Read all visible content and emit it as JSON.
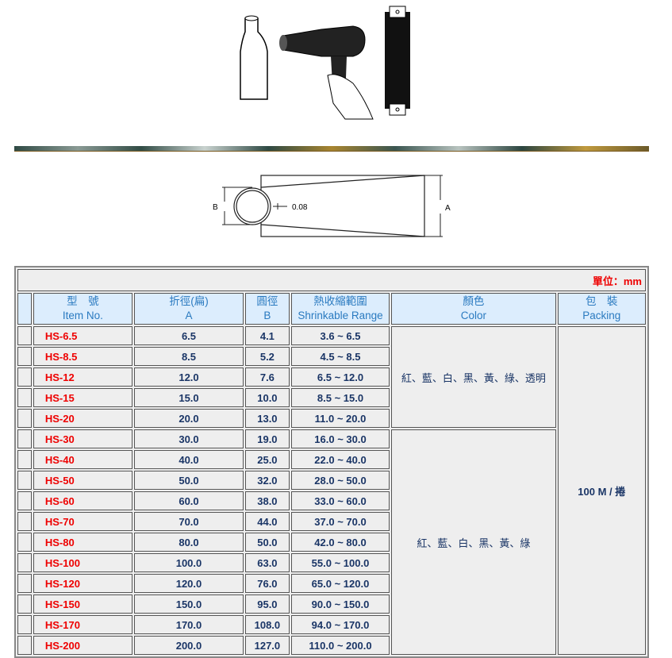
{
  "diagram": {
    "label_b": "B",
    "label_a": "A",
    "thickness": "0.08"
  },
  "table": {
    "unit": "單位：mm",
    "headers": [
      {
        "zh": "型　號",
        "en": "Item No."
      },
      {
        "zh": "折徑(扁)",
        "en": "A"
      },
      {
        "zh": "圓徑",
        "en": "B"
      },
      {
        "zh": "熱收縮範圍",
        "en": "Shrinkable Range"
      },
      {
        "zh": "顏色",
        "en": "Color"
      },
      {
        "zh": "包　裝",
        "en": "Packing"
      }
    ],
    "rows": [
      [
        "HS-6.5",
        "6.5",
        "4.1",
        "3.6 ~ 6.5"
      ],
      [
        "HS-8.5",
        "8.5",
        "5.2",
        "4.5 ~ 8.5"
      ],
      [
        "HS-12",
        "12.0",
        "7.6",
        "6.5 ~ 12.0"
      ],
      [
        "HS-15",
        "15.0",
        "10.0",
        "8.5 ~ 15.0"
      ],
      [
        "HS-20",
        "20.0",
        "13.0",
        "11.0 ~ 20.0"
      ],
      [
        "HS-30",
        "30.0",
        "19.0",
        "16.0 ~ 30.0"
      ],
      [
        "HS-40",
        "40.0",
        "25.0",
        "22.0 ~ 40.0"
      ],
      [
        "HS-50",
        "50.0",
        "32.0",
        "28.0 ~ 50.0"
      ],
      [
        "HS-60",
        "60.0",
        "38.0",
        "33.0 ~ 60.0"
      ],
      [
        "HS-70",
        "70.0",
        "44.0",
        "37.0 ~ 70.0"
      ],
      [
        "HS-80",
        "80.0",
        "50.0",
        "42.0 ~ 80.0"
      ],
      [
        "HS-100",
        "100.0",
        "63.0",
        "55.0 ~ 100.0"
      ],
      [
        "HS-120",
        "120.0",
        "76.0",
        "65.0 ~ 120.0"
      ],
      [
        "HS-150",
        "150.0",
        "95.0",
        "90.0 ~ 150.0"
      ],
      [
        "HS-170",
        "170.0",
        "108.0",
        "94.0 ~ 170.0"
      ],
      [
        "HS-200",
        "200.0",
        "127.0",
        "110.0 ~ 200.0"
      ]
    ],
    "color_group1": "紅、藍、白、黑、黃、綠、透明",
    "color_group2": "紅、藍、白、黑、黃、綠",
    "packing": "100 M / 捲"
  }
}
